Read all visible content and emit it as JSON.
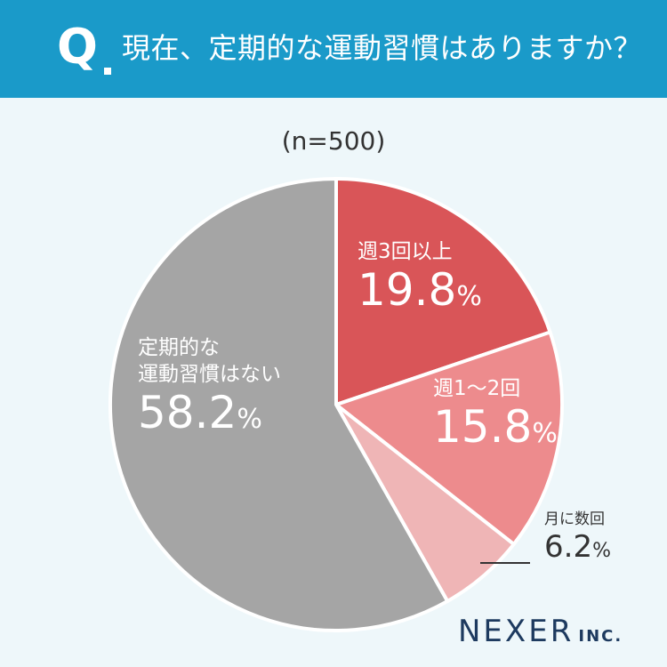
{
  "header": {
    "q_mark": "Q",
    "question": "現在、定期的な運動習慣はありますか？"
  },
  "sample_size": "(n=500)",
  "chart_data": {
    "type": "pie",
    "categories": [
      "週3回以上",
      "週1〜2回",
      "月に数回",
      "定期的な運動習慣はない"
    ],
    "values": [
      19.8,
      15.8,
      6.2,
      58.2
    ],
    "colors": [
      "#d95558",
      "#ed8b8d",
      "#efb5b6",
      "#a5a5a5"
    ],
    "start": "12 o'clock, clockwise"
  },
  "labels": {
    "weekly3": {
      "name": "週3回以上",
      "value": "19.8",
      "unit": "%"
    },
    "weekly12": {
      "name": "週1〜2回",
      "value": "15.8",
      "unit": "%"
    },
    "monthly": {
      "name": "月に数回",
      "value": "6.2",
      "unit": "%"
    },
    "none": {
      "name_line1": "定期的な",
      "name_line2": "運動習慣はない",
      "value": "58.2",
      "unit": "%"
    }
  },
  "logo": {
    "main": "NEXER",
    "suffix": "INC."
  }
}
